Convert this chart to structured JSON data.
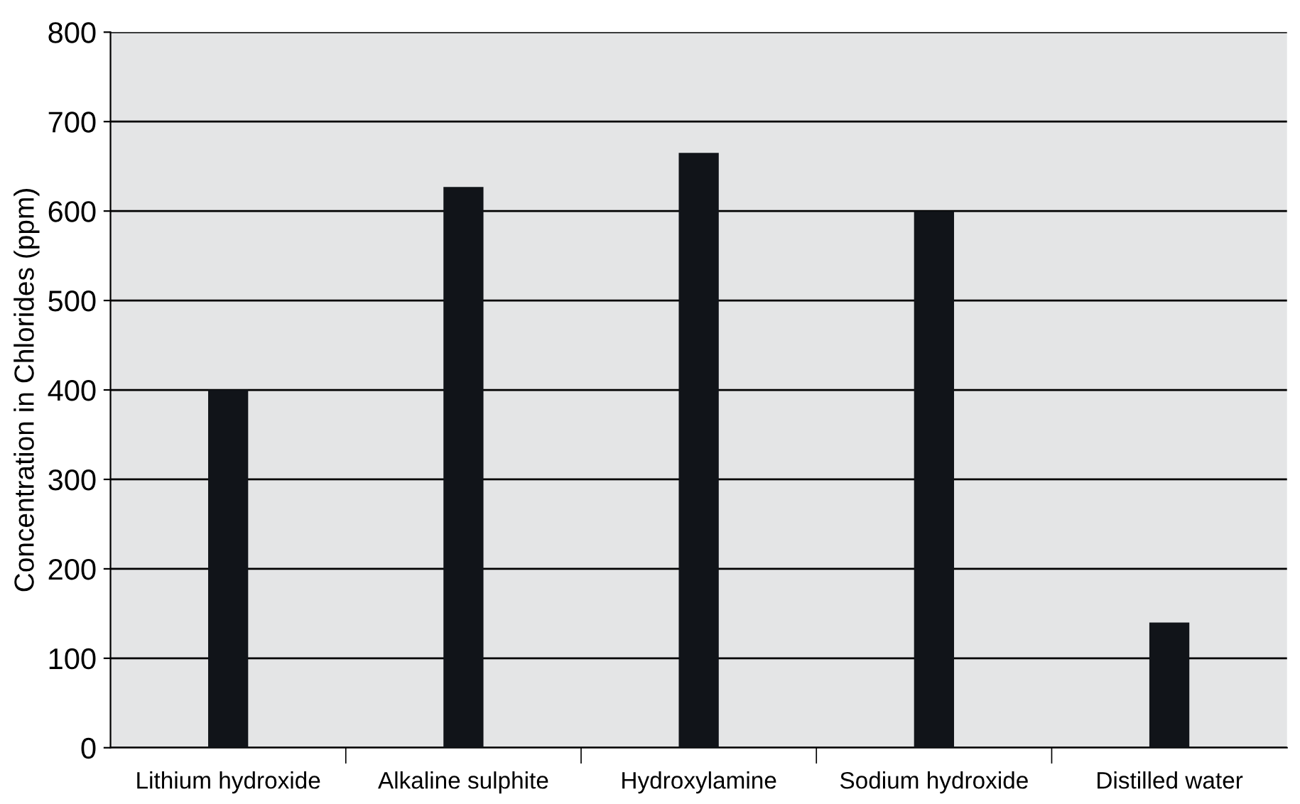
{
  "chart_data": {
    "type": "bar",
    "ylabel": "Concentration in Chlorides (ppm)",
    "categories": [
      "Lithium hydroxide",
      "Alkaline sulphite",
      "Hydroxylamine",
      "Sodium hydroxide",
      "Distilled water"
    ],
    "values": [
      400,
      627,
      665,
      600,
      140
    ],
    "color": "#111419",
    "ylim": [
      0,
      800
    ],
    "yticks": [
      0,
      100,
      200,
      300,
      400,
      500,
      600,
      700,
      800
    ],
    "grid": "y"
  }
}
